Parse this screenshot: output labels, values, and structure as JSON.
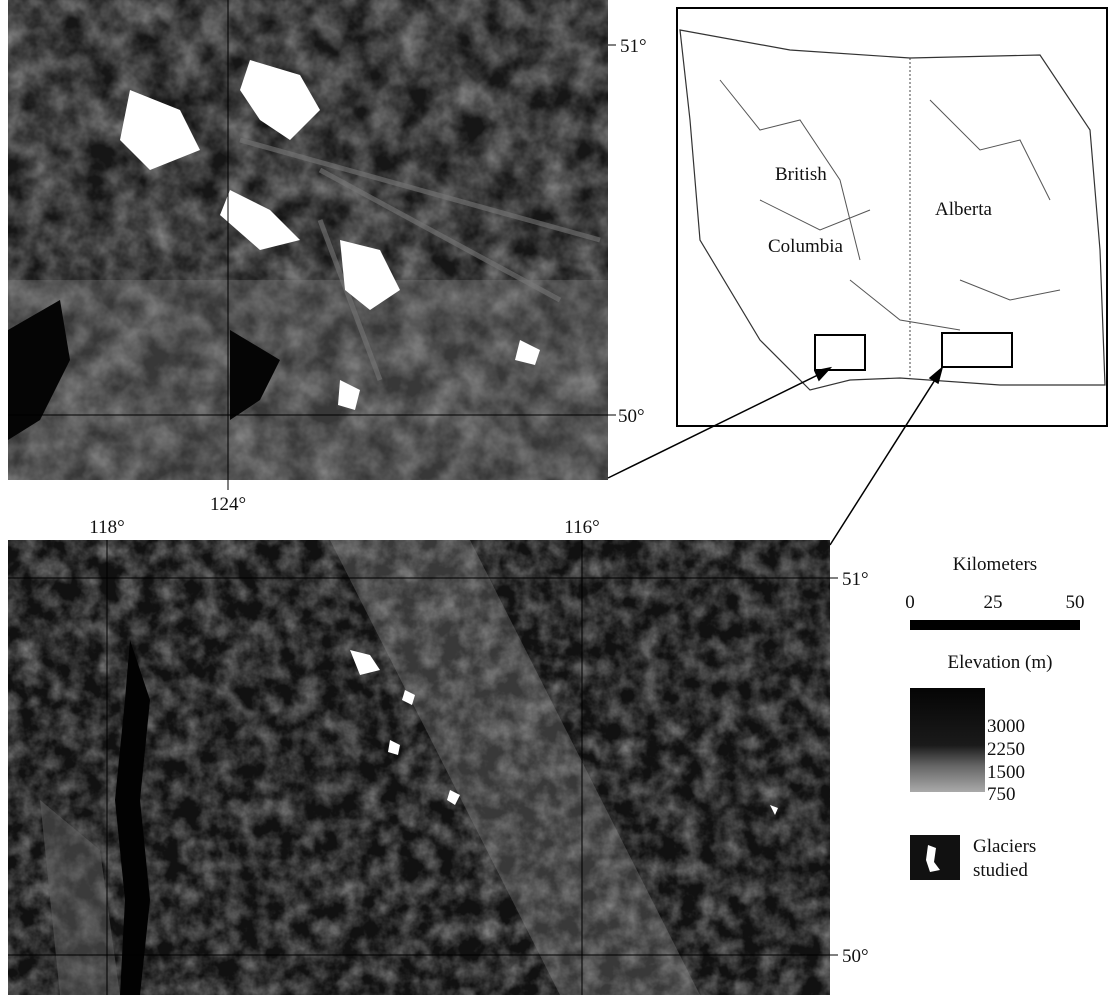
{
  "top_map": {
    "lat_labels": [
      "51°",
      "50°"
    ],
    "lon_labels": [
      "124°"
    ]
  },
  "bottom_map": {
    "lat_labels": [
      "51°",
      "50°"
    ],
    "lon_labels": [
      "118°",
      "116°"
    ]
  },
  "inset_map": {
    "labels": [
      "British",
      "Columbia",
      "Alberta"
    ]
  },
  "legend": {
    "scale_title": "Kilometers",
    "scale_ticks": [
      "0",
      "25",
      "50"
    ],
    "elevation_title": "Elevation (m)",
    "elevation_ticks": [
      "3000",
      "2250",
      "1500",
      "750"
    ],
    "glacier_label": [
      "Glaciers",
      "studied"
    ]
  }
}
